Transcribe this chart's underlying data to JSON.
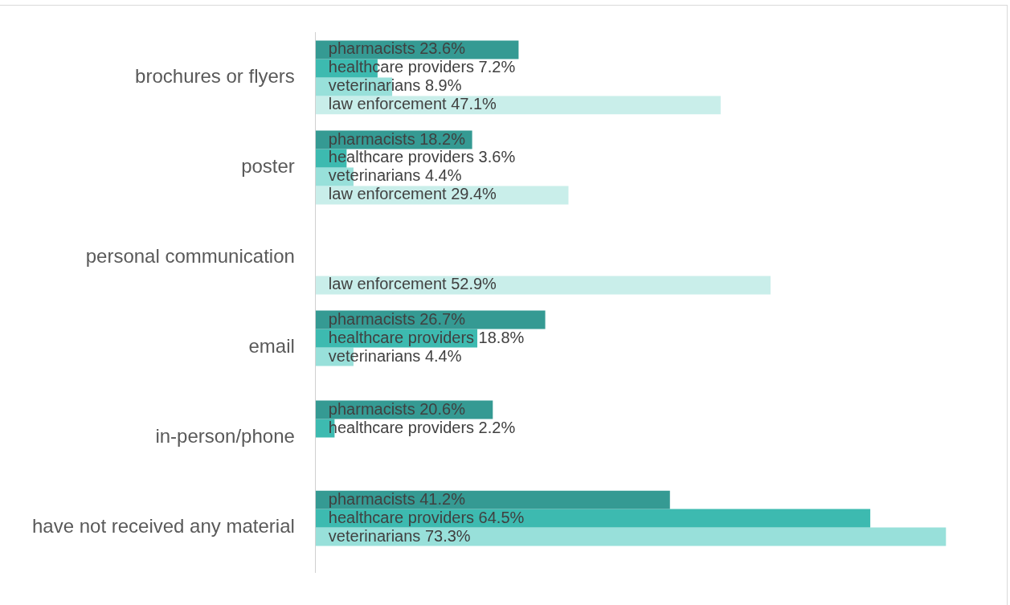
{
  "chart_data": {
    "type": "bar",
    "orientation": "horizontal",
    "categories": [
      "brochures or flyers",
      "poster",
      "personal communication",
      "email",
      "in-person/phone",
      "have not received any material"
    ],
    "series": [
      {
        "color": "#359a93",
        "values": [
          23.6,
          18.2,
          null,
          26.7,
          20.6,
          41.2
        ],
        "value_labels": [
          "pharmacists 23.6%",
          "pharmacists 18.2%",
          null,
          "pharmacists 26.7%",
          "pharmacists 20.6%",
          "pharmacists 41.2%"
        ]
      },
      {
        "color": "#3dbab0",
        "values": [
          7.2,
          3.6,
          null,
          18.8,
          2.2,
          64.5
        ],
        "value_labels": [
          "healthcare providers 7.2%",
          "healthcare providers 3.6%",
          null,
          "healthcare providers 18.8%",
          "healthcare providers 2.2%",
          "healthcare providers 64.5%"
        ]
      },
      {
        "color": "#98e0da",
        "values": [
          8.9,
          4.4,
          null,
          4.4,
          null,
          73.3
        ],
        "value_labels": [
          "veterinarians 8.9%",
          "veterinarians 4.4%",
          null,
          "veterinarians 4.4%",
          null,
          "veterinarians 73.3%"
        ]
      },
      {
        "color": "#c9eeea",
        "values": [
          47.1,
          29.4,
          52.9,
          null,
          null,
          null
        ],
        "value_labels": [
          "law enforcement 47.1%",
          "law enforcement 29.4%",
          "law enforcement 52.9%",
          null,
          null,
          null
        ]
      }
    ],
    "grid": false,
    "legend": false
  }
}
